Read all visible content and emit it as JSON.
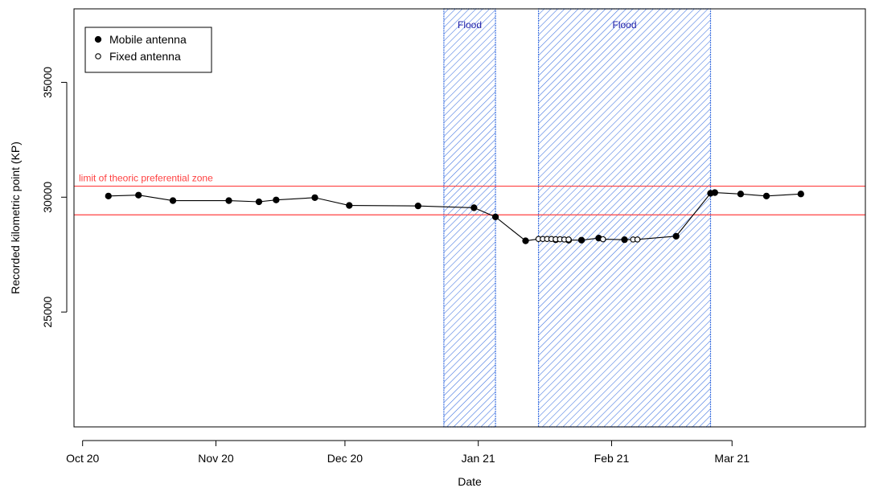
{
  "chart_data": {
    "type": "scatter",
    "title": "",
    "xlabel": "Date",
    "ylabel": "Recorded kilometric point (KP)",
    "x_range": [
      "2020-09-29",
      "2021-04-01"
    ],
    "ylim": [
      20000,
      38200
    ],
    "x_ticks": [
      {
        "date": "2020-10-01",
        "label": "Oct 20"
      },
      {
        "date": "2020-11-01",
        "label": "Nov 20"
      },
      {
        "date": "2020-12-01",
        "label": "Dec 20"
      },
      {
        "date": "2021-01-01",
        "label": "Jan 21"
      },
      {
        "date": "2021-02-01",
        "label": "Feb 21"
      },
      {
        "date": "2021-03-01",
        "label": "Mar 21"
      }
    ],
    "y_ticks": [
      {
        "value": 25000,
        "label": "25000"
      },
      {
        "value": 30000,
        "label": "30000"
      },
      {
        "value": 35000,
        "label": "35000"
      }
    ],
    "grid": false,
    "legend": {
      "position": "top-left",
      "entries": [
        {
          "label": "Mobile antenna",
          "marker": "filled-circle"
        },
        {
          "label": "Fixed antenna",
          "marker": "open-circle"
        }
      ]
    },
    "colors": {
      "points": "#000000",
      "reference_lines": "#ff4040",
      "flood_hatch": "#3a6fe0",
      "flood_label": "#1a1aa6"
    },
    "reference_lines": [
      {
        "value": 30480,
        "label": "limit of theoric preferential zone"
      },
      {
        "value": 29230,
        "label": ""
      }
    ],
    "flood_periods": [
      {
        "start": "2020-12-24",
        "end": "2021-01-05",
        "label": "Flood"
      },
      {
        "start": "2021-01-15",
        "end": "2021-02-24",
        "label": "Flood"
      }
    ],
    "series": [
      {
        "name": "Mobile antenna",
        "marker": "filled",
        "points": [
          {
            "x": "2020-10-07",
            "y": 30050
          },
          {
            "x": "2020-10-14",
            "y": 30090
          },
          {
            "x": "2020-10-22",
            "y": 29850
          },
          {
            "x": "2020-11-04",
            "y": 29850
          },
          {
            "x": "2020-11-11",
            "y": 29800
          },
          {
            "x": "2020-11-15",
            "y": 29880
          },
          {
            "x": "2020-11-24",
            "y": 29980
          },
          {
            "x": "2020-12-02",
            "y": 29640
          },
          {
            "x": "2020-12-18",
            "y": 29620
          },
          {
            "x": "2020-12-31",
            "y": 29540
          },
          {
            "x": "2021-01-05",
            "y": 29140
          },
          {
            "x": "2021-01-12",
            "y": 28100
          },
          {
            "x": "2021-01-19",
            "y": 28150
          },
          {
            "x": "2021-01-22",
            "y": 28130
          },
          {
            "x": "2021-01-25",
            "y": 28130
          },
          {
            "x": "2021-01-29",
            "y": 28220
          },
          {
            "x": "2021-02-04",
            "y": 28150
          },
          {
            "x": "2021-02-16",
            "y": 28300
          },
          {
            "x": "2021-02-24",
            "y": 30170
          },
          {
            "x": "2021-02-25",
            "y": 30200
          },
          {
            "x": "2021-03-03",
            "y": 30140
          },
          {
            "x": "2021-03-09",
            "y": 30050
          },
          {
            "x": "2021-03-17",
            "y": 30140
          }
        ]
      },
      {
        "name": "Fixed antenna",
        "marker": "open",
        "points": [
          {
            "x": "2021-01-15",
            "y": 28180
          },
          {
            "x": "2021-01-16",
            "y": 28180
          },
          {
            "x": "2021-01-17",
            "y": 28180
          },
          {
            "x": "2021-01-18",
            "y": 28180
          },
          {
            "x": "2021-01-19",
            "y": 28170
          },
          {
            "x": "2021-01-20",
            "y": 28170
          },
          {
            "x": "2021-01-21",
            "y": 28160
          },
          {
            "x": "2021-01-22",
            "y": 28160
          },
          {
            "x": "2021-01-30",
            "y": 28170
          },
          {
            "x": "2021-02-06",
            "y": 28160
          },
          {
            "x": "2021-02-07",
            "y": 28160
          }
        ]
      }
    ],
    "line_sequence": [
      {
        "x": "2020-10-07",
        "y": 30050
      },
      {
        "x": "2020-10-14",
        "y": 30090
      },
      {
        "x": "2020-10-22",
        "y": 29850
      },
      {
        "x": "2020-11-04",
        "y": 29850
      },
      {
        "x": "2020-11-11",
        "y": 29800
      },
      {
        "x": "2020-11-15",
        "y": 29880
      },
      {
        "x": "2020-11-24",
        "y": 29980
      },
      {
        "x": "2020-12-02",
        "y": 29640
      },
      {
        "x": "2020-12-18",
        "y": 29620
      },
      {
        "x": "2020-12-31",
        "y": 29540
      },
      {
        "x": "2021-01-05",
        "y": 29140
      },
      {
        "x": "2021-01-12",
        "y": 28100
      },
      {
        "x": "2021-01-15",
        "y": 28180
      },
      {
        "x": "2021-01-16",
        "y": 28180
      },
      {
        "x": "2021-01-17",
        "y": 28180
      },
      {
        "x": "2021-01-18",
        "y": 28180
      },
      {
        "x": "2021-01-19",
        "y": 28150
      },
      {
        "x": "2021-01-20",
        "y": 28170
      },
      {
        "x": "2021-01-21",
        "y": 28160
      },
      {
        "x": "2021-01-22",
        "y": 28130
      },
      {
        "x": "2021-01-25",
        "y": 28130
      },
      {
        "x": "2021-01-29",
        "y": 28220
      },
      {
        "x": "2021-01-30",
        "y": 28170
      },
      {
        "x": "2021-02-04",
        "y": 28150
      },
      {
        "x": "2021-02-06",
        "y": 28160
      },
      {
        "x": "2021-02-07",
        "y": 28160
      },
      {
        "x": "2021-02-16",
        "y": 28300
      },
      {
        "x": "2021-02-24",
        "y": 30170
      },
      {
        "x": "2021-02-25",
        "y": 30200
      },
      {
        "x": "2021-03-03",
        "y": 30140
      },
      {
        "x": "2021-03-09",
        "y": 30050
      },
      {
        "x": "2021-03-17",
        "y": 30140
      }
    ]
  }
}
